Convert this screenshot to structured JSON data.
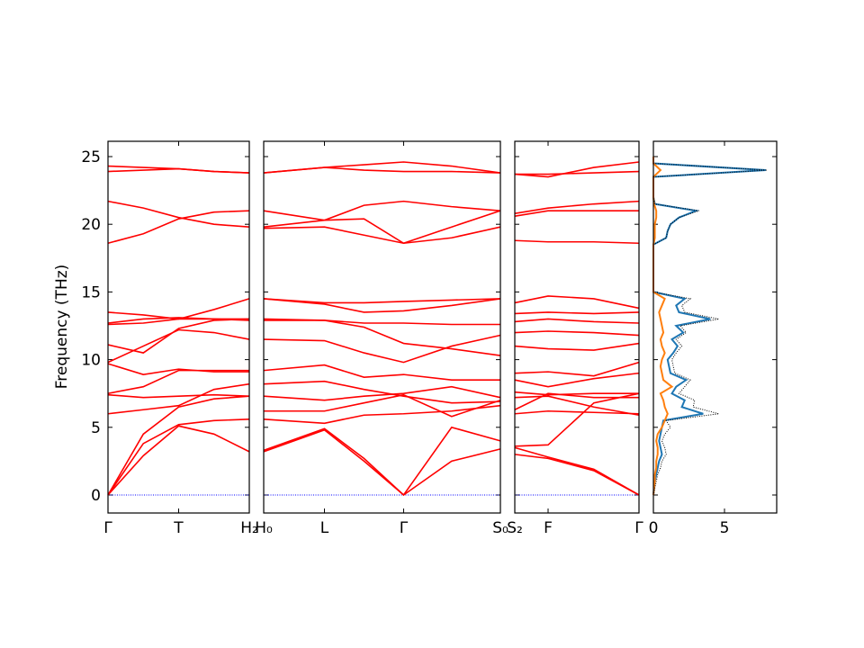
{
  "chart_data": [
    {
      "type": "line",
      "ylabel": "Frequency (THz)",
      "color": "#ff0000",
      "ylim": [
        -1.33,
        26.13
      ],
      "yticks": [
        0,
        5,
        10,
        15,
        20,
        25
      ],
      "hline": 0,
      "hline_color": "#0000ff",
      "xlim": [
        0,
        1.0
      ],
      "xticks": [
        {
          "value": 0,
          "label": "Γ"
        },
        {
          "value": 0.5,
          "label": "T"
        },
        {
          "value": 1.0,
          "label": "H₂"
        }
      ],
      "x": [
        0,
        0.25,
        0.5,
        0.75,
        1.0
      ],
      "series": [
        {
          "values": [
            0,
            2.9,
            5.1,
            4.5,
            3.2
          ]
        },
        {
          "values": [
            0,
            3.8,
            5.2,
            5.5,
            5.6
          ]
        },
        {
          "values": [
            0,
            4.5,
            6.5,
            7.1,
            7.3
          ]
        },
        {
          "values": [
            6.0,
            6.3,
            6.6,
            7.8,
            8.2
          ]
        },
        {
          "values": [
            7.4,
            7.2,
            7.3,
            7.4,
            7.3
          ]
        },
        {
          "values": [
            7.5,
            8.0,
            9.2,
            9.2,
            9.2
          ]
        },
        {
          "values": [
            9.7,
            8.9,
            9.3,
            9.1,
            9.1
          ]
        },
        {
          "values": [
            9.8,
            11.0,
            12.2,
            12.0,
            11.5
          ]
        },
        {
          "values": [
            11.1,
            10.5,
            12.3,
            12.9,
            13.0
          ]
        },
        {
          "values": [
            12.6,
            12.7,
            13.0,
            13.7,
            14.5
          ]
        },
        {
          "values": [
            12.7,
            13.0,
            13.1,
            13.0,
            12.9
          ]
        },
        {
          "values": [
            13.5,
            13.3,
            13.0,
            13.0,
            13.0
          ]
        },
        {
          "values": [
            18.6,
            19.3,
            20.4,
            20.9,
            21.0
          ]
        },
        {
          "values": [
            21.7,
            21.2,
            20.5,
            20.0,
            19.8
          ]
        },
        {
          "values": [
            23.9,
            24.0,
            24.1,
            23.9,
            23.8
          ]
        },
        {
          "values": [
            24.3,
            24.2,
            24.1,
            23.9,
            23.8
          ]
        }
      ]
    },
    {
      "type": "line",
      "color": "#ff0000",
      "xlim": [
        0,
        1.675
      ],
      "xticks": [
        {
          "value": 0,
          "label": "H₀"
        },
        {
          "value": 0.43,
          "label": "L"
        },
        {
          "value": 0.99,
          "label": "Γ"
        },
        {
          "value": 1.675,
          "label": "S₀"
        }
      ],
      "x": [
        0,
        0.43,
        0.71,
        0.99,
        1.33,
        1.675
      ],
      "series": [
        {
          "values": [
            3.2,
            4.8,
            2.5,
            0,
            5.0,
            4.0
          ]
        },
        {
          "values": [
            3.3,
            4.9,
            2.7,
            0,
            2.5,
            3.4
          ]
        },
        {
          "values": [
            5.6,
            5.3,
            5.9,
            6.0,
            6.2,
            6.6
          ]
        },
        {
          "values": [
            6.2,
            6.2,
            6.8,
            7.4,
            5.8,
            7.0
          ]
        },
        {
          "values": [
            7.3,
            7.0,
            7.3,
            7.5,
            8.0,
            7.2
          ]
        },
        {
          "values": [
            8.2,
            8.4,
            7.8,
            7.3,
            6.8,
            6.9
          ]
        },
        {
          "values": [
            9.2,
            9.6,
            8.7,
            8.9,
            8.5,
            8.5
          ]
        },
        {
          "values": [
            11.5,
            11.4,
            10.5,
            9.8,
            11.0,
            11.8
          ]
        },
        {
          "values": [
            12.9,
            12.9,
            12.4,
            11.2,
            10.8,
            10.3
          ]
        },
        {
          "values": [
            13.0,
            12.9,
            12.7,
            12.7,
            12.6,
            12.6
          ]
        },
        {
          "values": [
            14.5,
            14.1,
            13.5,
            13.6,
            14.0,
            14.5
          ]
        },
        {
          "values": [
            14.5,
            14.2,
            14.2,
            14.3,
            14.4,
            14.5
          ]
        },
        {
          "values": [
            19.7,
            19.8,
            19.2,
            18.6,
            19.0,
            19.8
          ]
        },
        {
          "values": [
            19.8,
            20.3,
            20.4,
            18.6,
            19.8,
            21.0
          ]
        },
        {
          "values": [
            21.0,
            20.3,
            21.4,
            21.7,
            21.3,
            21.0
          ]
        },
        {
          "values": [
            23.8,
            24.2,
            24.4,
            24.6,
            24.3,
            23.8
          ]
        },
        {
          "values": [
            23.8,
            24.2,
            24.0,
            23.9,
            23.9,
            23.8
          ]
        }
      ]
    },
    {
      "type": "line",
      "color": "#ff0000",
      "xlim": [
        0,
        0.88
      ],
      "xticks": [
        {
          "value": 0,
          "label": "S₂"
        },
        {
          "value": 0.236,
          "label": "F"
        },
        {
          "value": 0.88,
          "label": "Γ"
        }
      ],
      "x": [
        0,
        0.236,
        0.56,
        0.88
      ],
      "series": [
        {
          "values": [
            3.0,
            2.7,
            1.8,
            0
          ]
        },
        {
          "values": [
            3.5,
            2.8,
            1.9,
            0
          ]
        },
        {
          "values": [
            3.6,
            3.7,
            6.8,
            7.5
          ]
        },
        {
          "values": [
            6.0,
            6.2,
            6.1,
            6.0
          ]
        },
        {
          "values": [
            6.3,
            7.5,
            7.2,
            7.2
          ]
        },
        {
          "values": [
            7.2,
            7.3,
            6.5,
            5.9
          ]
        },
        {
          "values": [
            7.6,
            7.4,
            7.5,
            7.5
          ]
        },
        {
          "values": [
            8.5,
            8.0,
            8.6,
            9.0
          ]
        },
        {
          "values": [
            9.0,
            9.1,
            8.8,
            9.8
          ]
        },
        {
          "values": [
            11.0,
            10.8,
            10.7,
            11.2
          ]
        },
        {
          "values": [
            12.0,
            12.1,
            12.0,
            11.8
          ]
        },
        {
          "values": [
            12.8,
            13.0,
            12.8,
            12.7
          ]
        },
        {
          "values": [
            13.4,
            13.5,
            13.4,
            13.5
          ]
        },
        {
          "values": [
            14.2,
            14.7,
            14.5,
            13.8
          ]
        },
        {
          "values": [
            18.8,
            18.7,
            18.7,
            18.6
          ]
        },
        {
          "values": [
            20.8,
            21.2,
            21.5,
            21.7
          ]
        },
        {
          "values": [
            20.6,
            21.0,
            21.0,
            21.0
          ]
        },
        {
          "values": [
            23.7,
            23.5,
            24.2,
            24.6
          ]
        },
        {
          "values": [
            23.7,
            23.7,
            23.8,
            23.9
          ]
        }
      ]
    },
    {
      "type": "dos",
      "xlim": [
        0,
        8.67
      ],
      "xticks": [
        0,
        5
      ],
      "y": [
        0,
        0.5,
        1,
        1.5,
        2,
        2.5,
        3,
        3.5,
        4,
        4.5,
        5,
        5.5,
        6,
        6.5,
        7,
        7.5,
        8,
        8.5,
        9,
        9.5,
        10,
        10.5,
        11,
        11.5,
        12,
        12.5,
        13,
        13.5,
        14,
        14.5,
        15,
        15.5,
        16,
        16.5,
        17,
        17.5,
        18,
        18.5,
        19,
        19.5,
        20,
        20.5,
        21,
        21.5,
        22,
        22.5,
        23,
        23.5,
        24,
        24.5,
        25
      ],
      "series": [
        {
          "color": "#1f77b4",
          "style": "solid",
          "values": [
            0,
            0.05,
            0.1,
            0.2,
            0.3,
            0.4,
            0.6,
            0.5,
            0.4,
            0.5,
            0.6,
            0.7,
            3.5,
            2.0,
            2.2,
            1.3,
            1.6,
            2.3,
            1.2,
            1.1,
            1.0,
            1.4,
            1.7,
            1.3,
            2.1,
            1.6,
            4.0,
            1.8,
            1.6,
            2.2,
            0,
            0,
            0,
            0,
            0,
            0,
            0,
            0,
            0.9,
            1.0,
            1.2,
            1.8,
            3.0,
            0.1,
            0,
            0,
            0,
            0,
            7.9,
            0,
            0
          ]
        },
        {
          "color": "#ff7f0e",
          "style": "solid",
          "values": [
            0,
            0.05,
            0.1,
            0.1,
            0.2,
            0.2,
            0.3,
            0.3,
            0.2,
            0.3,
            0.6,
            0.8,
            1.0,
            0.8,
            0.7,
            0.5,
            1.3,
            0.7,
            0.6,
            0.5,
            0.6,
            0.8,
            0.6,
            0.5,
            0.7,
            0.6,
            0.5,
            0.4,
            0.6,
            0.8,
            0,
            0,
            0,
            0,
            0,
            0,
            0,
            0,
            0.1,
            0.1,
            0.1,
            0.2,
            0.2,
            0.05,
            0,
            0,
            0,
            0,
            0.5,
            0,
            0
          ]
        },
        {
          "color": "#000000",
          "style": "dotted",
          "values": [
            0,
            0.1,
            0.2,
            0.3,
            0.5,
            0.6,
            0.9,
            0.8,
            0.6,
            0.8,
            1.2,
            0.9,
            4.6,
            2.8,
            2.9,
            1.8,
            2.2,
            2.6,
            1.5,
            1.4,
            1.3,
            1.6,
            2.0,
            1.6,
            2.3,
            1.9,
            4.6,
            2.2,
            2.0,
            2.6,
            0,
            0,
            0,
            0,
            0,
            0,
            0,
            0,
            0.9,
            1.0,
            1.2,
            1.8,
            3.2,
            0.1,
            0,
            0,
            0,
            0,
            8.0,
            0,
            0
          ]
        }
      ]
    }
  ]
}
